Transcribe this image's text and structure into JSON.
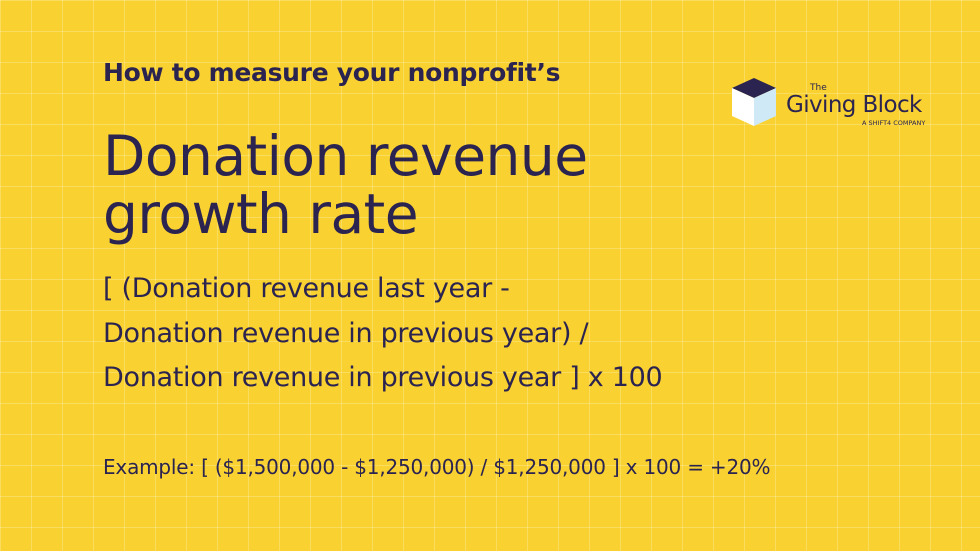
{
  "header": {
    "subtitle": "How to measure your nonprofit’s",
    "title_lines": [
      "Donation revenue",
      "growth rate"
    ]
  },
  "logo": {
    "small": "The",
    "name": "Giving Block",
    "tagline": "A SHIFT4 COMPANY"
  },
  "formula": {
    "lines": [
      "[ (Donation revenue last year -",
      "Donation revenue in previous year) /",
      "Donation revenue in previous year ] x 100"
    ]
  },
  "example": "Example: [ ($1,500,000 - $1,250,000) / $1,250,000 ] x 100 = +20%"
}
